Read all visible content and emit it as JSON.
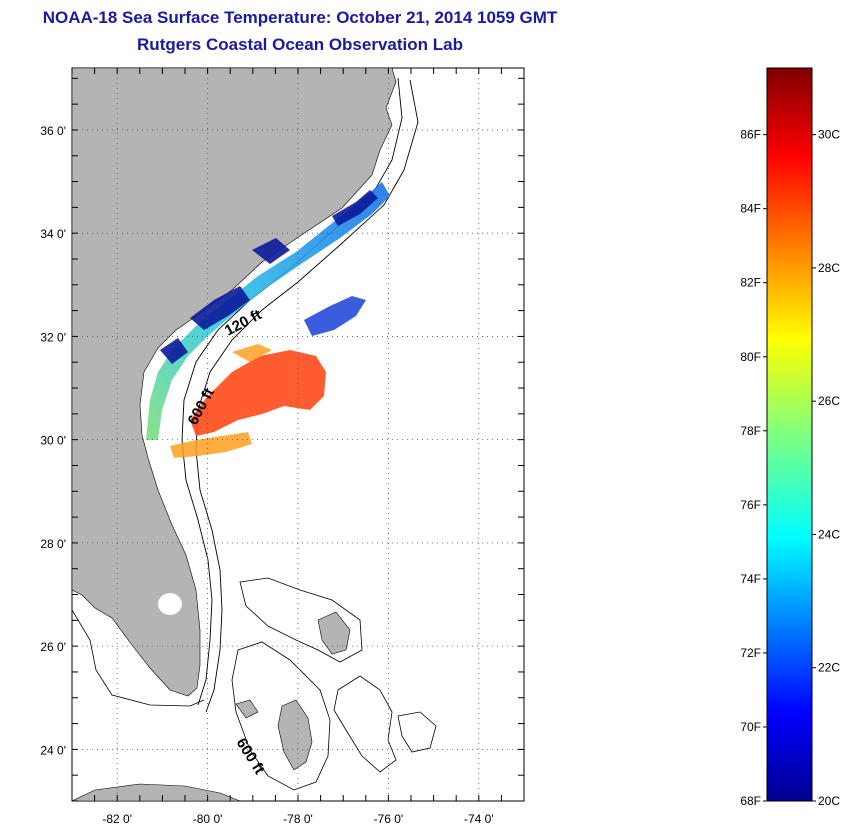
{
  "title": "NOAA-18 Sea Surface Temperature:  October 21, 2014 1059 GMT",
  "subtitle": "Rutgers Coastal Ocean Observation Lab",
  "map": {
    "lat_ticks": [
      "24 0'",
      "26 0'",
      "28 0'",
      "30 0'",
      "32 0'",
      "34 0'",
      "36 0'"
    ],
    "lon_ticks": [
      "-82 0'",
      "-80 0'",
      "-78 0'",
      "-76 0'",
      "-74 0'"
    ],
    "lat_values": [
      24,
      26,
      28,
      30,
      32,
      34,
      36
    ],
    "lon_values": [
      -82,
      -80,
      -78,
      -76,
      -74
    ],
    "lat_range": [
      23,
      37.2
    ],
    "lon_range": [
      -83,
      -73
    ],
    "contour_labels": [
      "120 ft",
      "600 ft",
      "600 ft"
    ],
    "land_color": "#b4b4b4"
  },
  "colorbar": {
    "f_labels": [
      "68F",
      "70F",
      "72F",
      "74F",
      "76F",
      "78F",
      "80F",
      "82F",
      "84F",
      "86F"
    ],
    "c_labels": [
      "20C",
      "22C",
      "24C",
      "26C",
      "28C",
      "30C"
    ],
    "c_ticks_labels": [
      "22C",
      "24C",
      "26C",
      "28C",
      "30C"
    ],
    "range_celsius": [
      20,
      31
    ],
    "colormap": "jet"
  }
}
